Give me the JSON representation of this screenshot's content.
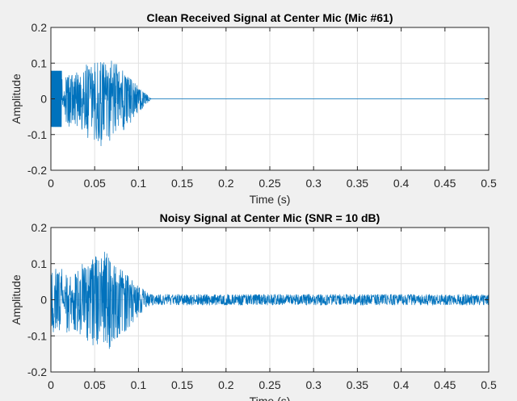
{
  "colors": {
    "line": "#0072bd",
    "grid": "#e1e1e1",
    "axes": "#262626",
    "background": "#f0f0f0"
  },
  "chart_data": [
    {
      "type": "line",
      "title": "Clean Received Signal at Center Mic (Mic #61)",
      "xlabel": "Time (s)",
      "ylabel": "Amplitude",
      "xlim": [
        0,
        0.5
      ],
      "ylim": [
        -0.2,
        0.2
      ],
      "grid": true,
      "xticks": [
        "0",
        "0.05",
        "0.1",
        "0.15",
        "0.2",
        "0.25",
        "0.3",
        "0.35",
        "0.4",
        "0.45",
        "0.5"
      ],
      "yticks": [
        "0.2",
        "0.1",
        "0",
        "-0.1",
        "-0.2"
      ],
      "series": [
        {
          "envelope": {
            "t": [
              0,
              0.002,
              0.013,
              0.0135,
              0.016,
              0.018,
              0.025,
              0.035,
              0.045,
              0.055,
              0.065,
              0.07,
              0.08,
              0.09,
              0.1,
              0.11,
              0.115,
              0.5
            ],
            "max": [
              0.078,
              0.078,
              0.078,
              0.0,
              0.04,
              0.075,
              0.07,
              0.09,
              0.11,
              0.115,
              0.115,
              0.11,
              0.085,
              0.06,
              0.035,
              0.012,
              0.0,
              0.0
            ],
            "min": [
              -0.078,
              -0.078,
              -0.078,
              0.0,
              -0.04,
              -0.09,
              -0.07,
              -0.09,
              -0.12,
              -0.13,
              -0.14,
              -0.13,
              -0.1,
              -0.07,
              -0.04,
              -0.012,
              0.0,
              0.0
            ]
          }
        }
      ]
    },
    {
      "type": "line",
      "title": "Noisy Signal at Center Mic (SNR = 10 dB)",
      "xlabel": "Time (s)",
      "ylabel": "Amplitude",
      "xlim": [
        0,
        0.5
      ],
      "ylim": [
        -0.2,
        0.2
      ],
      "grid": true,
      "xticks": [
        "0",
        "0.05",
        "0.1",
        "0.15",
        "0.2",
        "0.25",
        "0.3",
        "0.35",
        "0.4",
        "0.45",
        "0.5"
      ],
      "yticks": [
        "0.2",
        "0.1",
        "0",
        "-0.1",
        "-0.2"
      ],
      "series": [
        {
          "envelope": {
            "t": [
              0,
              0.002,
              0.013,
              0.0135,
              0.016,
              0.018,
              0.025,
              0.035,
              0.045,
              0.055,
              0.065,
              0.07,
              0.08,
              0.09,
              0.1,
              0.11,
              0.115,
              0.5
            ],
            "max": [
              0.09,
              0.09,
              0.085,
              0.012,
              0.05,
              0.08,
              0.08,
              0.1,
              0.115,
              0.125,
              0.14,
              0.12,
              0.09,
              0.065,
              0.04,
              0.02,
              0.015,
              0.015
            ],
            "min": [
              -0.09,
              -0.09,
              -0.09,
              -0.012,
              -0.05,
              -0.1,
              -0.08,
              -0.1,
              -0.125,
              -0.13,
              -0.14,
              -0.13,
              -0.1,
              -0.075,
              -0.045,
              -0.02,
              -0.015,
              -0.015
            ]
          }
        }
      ]
    }
  ]
}
